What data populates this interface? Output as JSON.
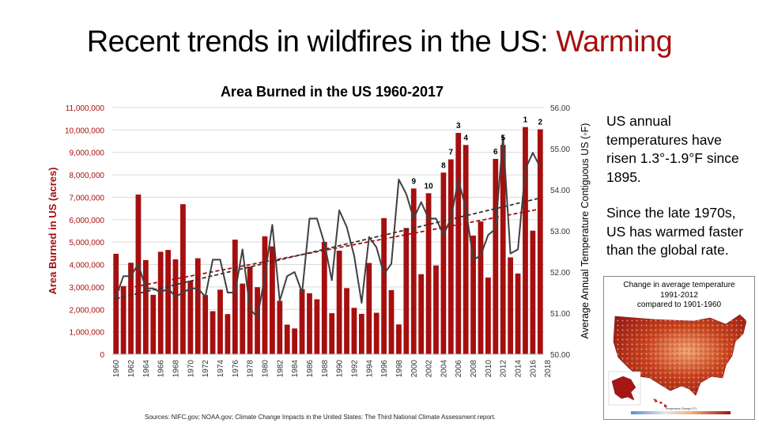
{
  "slide": {
    "title_prefix": "Recent trends in wildfires in the US: ",
    "title_accent": "Warming",
    "accent_color": "#a50f0f"
  },
  "side_text": {
    "p1": "US annual temperatures have risen 1.3°-1.9°F since 1895.",
    "p2": "Since the late 1970s, US has warmed faster than the global rate."
  },
  "map_inset": {
    "title_line1": "Change in average temperature",
    "title_line2": "1991-2012",
    "title_line3": "compared to 1901-1960",
    "legend_label": "Temperature Change (°F)"
  },
  "sources": "Sources: NIFC.gov; NOAA.gov; Climate Change Impacts in the United States: The Third National Climate Assessment report.",
  "chart_data": {
    "type": "bar",
    "title": "Area Burned in the US 1960-2017",
    "ylabel": "Area Burned in US (acres)",
    "y2label": "Average Annual Temperature Contiguous US (◦F)",
    "ylim": [
      0,
      11000000
    ],
    "y2lim": [
      50,
      56
    ],
    "yticks": [
      "0",
      "1,000,000",
      "2,000,000",
      "3,000,000",
      "4,000,000",
      "5,000,000",
      "6,000,000",
      "7,000,000",
      "8,000,000",
      "9,000,000",
      "10,000,000",
      "11,000,000"
    ],
    "y2ticks": [
      "50.00",
      "51.00",
      "52.00",
      "53.00",
      "54.00",
      "55.00",
      "56.00"
    ],
    "xticks": [
      "1960",
      "1962",
      "1964",
      "1966",
      "1968",
      "1970",
      "1972",
      "1974",
      "1976",
      "1978",
      "1980",
      "1982",
      "1984",
      "1986",
      "1988",
      "1990",
      "1992",
      "1994",
      "1996",
      "1998",
      "2000",
      "2002",
      "2004",
      "2006",
      "2008",
      "2010",
      "2012",
      "2014",
      "2016",
      "2018"
    ],
    "grid": true,
    "colors": {
      "bars": "#a50f0f",
      "temperature_line": "#404040",
      "temp_trend": "#333333",
      "area_trend": "#a50f0f"
    },
    "years": [
      1960,
      1961,
      1962,
      1963,
      1964,
      1965,
      1966,
      1967,
      1968,
      1969,
      1970,
      1971,
      1972,
      1973,
      1974,
      1975,
      1976,
      1977,
      1978,
      1979,
      1980,
      1981,
      1982,
      1983,
      1984,
      1985,
      1986,
      1987,
      1988,
      1989,
      1990,
      1991,
      1992,
      1993,
      1994,
      1995,
      1996,
      1997,
      1998,
      1999,
      2000,
      2001,
      2002,
      2003,
      2004,
      2005,
      2006,
      2007,
      2008,
      2009,
      2010,
      2011,
      2012,
      2013,
      2014,
      2015,
      2016,
      2017
    ],
    "series": [
      {
        "name": "Area burned (acres)",
        "type": "bar",
        "axis": "left",
        "values": [
          4480000,
          3040000,
          4080000,
          7120000,
          4200000,
          2650000,
          4570000,
          4650000,
          4230000,
          6690000,
          3280000,
          4280000,
          2640000,
          1920000,
          2880000,
          1790000,
          5110000,
          3150000,
          3910000,
          2990000,
          5260000,
          4810000,
          2380000,
          1320000,
          1150000,
          2900000,
          2720000,
          2450000,
          5010000,
          1830000,
          4620000,
          2950000,
          2070000,
          1800000,
          4070000,
          1850000,
          6070000,
          2860000,
          1330000,
          5630000,
          7390000,
          3570000,
          7180000,
          3960000,
          8100000,
          8690000,
          9870000,
          9330000,
          5290000,
          5920000,
          3420000,
          8710000,
          9330000,
          4320000,
          3600000,
          10130000,
          5510000,
          10030000
        ]
      },
      {
        "name": "Average annual temperature (°F)",
        "type": "line",
        "axis": "right",
        "values": [
          51.4,
          51.9,
          51.9,
          52.2,
          51.6,
          51.6,
          51.5,
          51.6,
          51.4,
          51.5,
          51.6,
          51.6,
          51.4,
          52.3,
          52.3,
          51.5,
          51.5,
          52.55,
          51.1,
          50.9,
          51.9,
          53.15,
          51.3,
          51.9,
          52.0,
          51.5,
          53.3,
          53.3,
          52.7,
          51.8,
          53.5,
          53.1,
          52.4,
          51.25,
          52.85,
          52.6,
          51.95,
          52.2,
          54.25,
          53.9,
          53.3,
          53.7,
          53.3,
          53.3,
          52.9,
          53.3,
          54.25,
          53.55,
          52.3,
          52.4,
          52.9,
          53.05,
          55.3,
          52.45,
          52.55,
          54.5,
          54.9,
          54.55
        ]
      }
    ],
    "rank_labels": [
      {
        "year": 2015,
        "label": "1"
      },
      {
        "year": 2017,
        "label": "2"
      },
      {
        "year": 2006,
        "label": "3"
      },
      {
        "year": 2007,
        "label": "4"
      },
      {
        "year": 2012,
        "label": "5"
      },
      {
        "year": 2011,
        "label": "6"
      },
      {
        "year": 2005,
        "label": "7"
      },
      {
        "year": 2004,
        "label": "8"
      },
      {
        "year": 2000,
        "label": "9"
      },
      {
        "year": 2002,
        "label": "10"
      }
    ],
    "trendlines": [
      {
        "name": "Area burned trend",
        "axis": "left",
        "start": {
          "year": 1960,
          "value": 2850000
        },
        "end": {
          "year": 2017,
          "value": 6480000
        },
        "dashed": true
      },
      {
        "name": "Temperature trend",
        "axis": "right",
        "start": {
          "year": 1960,
          "value": 51.35
        },
        "end": {
          "year": 2017,
          "value": 53.8
        },
        "dashed": true
      }
    ]
  }
}
